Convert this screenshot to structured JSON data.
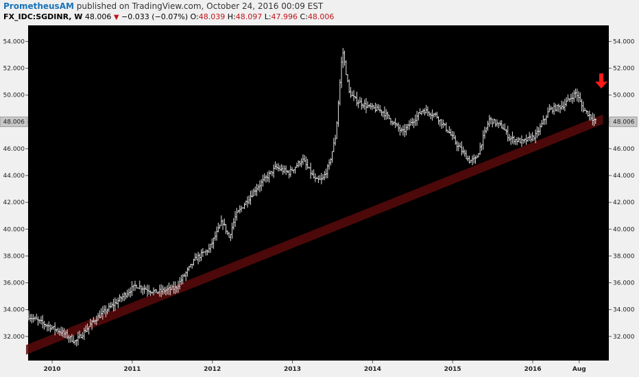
{
  "header": {
    "author": "PrometheusAM",
    "published_text": " published on TradingView.com, October 24, 2016 00:09 EST",
    "symbol": "FX_IDC:SGDINR, W",
    "last": "48.006",
    "arrow": "▼",
    "change": "−0.033 (−0.07%)",
    "open_label": "O:",
    "open": "48.039",
    "high_label": "H:",
    "high": "48.097",
    "low_label": "L:",
    "low": "47.996",
    "close_label": "C:",
    "close": "48.006"
  },
  "chart_data": {
    "type": "ohlc",
    "symbol": "FX_IDC:SGDINR",
    "interval": "W",
    "ylim": [
      30.2,
      55.2
    ],
    "y_ticks": [
      "32.000",
      "34.000",
      "36.000",
      "38.000",
      "40.000",
      "42.000",
      "44.000",
      "46.000",
      "48.000",
      "50.000",
      "52.000",
      "54.000"
    ],
    "x_ticks": [
      "2010",
      "2011",
      "2012",
      "2013",
      "2014",
      "2015",
      "2016",
      "Aug"
    ],
    "price_label": "48.006",
    "trend_channel": {
      "x": [
        "2009-09",
        "2016-10"
      ],
      "y": [
        31.0,
        48.2
      ]
    },
    "series": [
      {
        "x": [
          "2009-09",
          "2009-11",
          "2010-02",
          "2010-04",
          "2010-07",
          "2010-10",
          "2011-01",
          "2011-04",
          "2011-07",
          "2011-10",
          "2011-12",
          "2012-02",
          "2012-03",
          "2012-04",
          "2012-07",
          "2012-10",
          "2012-12",
          "2013-02",
          "2013-04",
          "2013-05",
          "2013-06",
          "2013-07",
          "2013-08",
          "2013-09",
          "2013-10",
          "2013-12",
          "2014-02",
          "2014-05",
          "2014-08",
          "2014-10",
          "2014-12",
          "2015-01",
          "2015-03",
          "2015-04",
          "2015-06",
          "2015-08",
          "2015-09",
          "2015-11",
          "2016-01",
          "2016-03",
          "2016-05",
          "2016-07",
          "2016-08",
          "2016-10"
        ],
        "close": [
          33.5,
          33.0,
          32.3,
          31.6,
          33.3,
          34.5,
          35.8,
          35.3,
          35.6,
          37.8,
          38.5,
          40.6,
          39.4,
          41.0,
          43.0,
          44.6,
          44.2,
          45.2,
          43.6,
          43.7,
          44.8,
          47.0,
          53.4,
          50.2,
          49.6,
          49.1,
          48.8,
          47.2,
          48.9,
          48.5,
          47.2,
          46.4,
          45.1,
          45.2,
          48.2,
          47.6,
          46.8,
          46.5,
          47.0,
          48.9,
          49.2,
          50.2,
          49.0,
          48.006
        ]
      }
    ]
  }
}
